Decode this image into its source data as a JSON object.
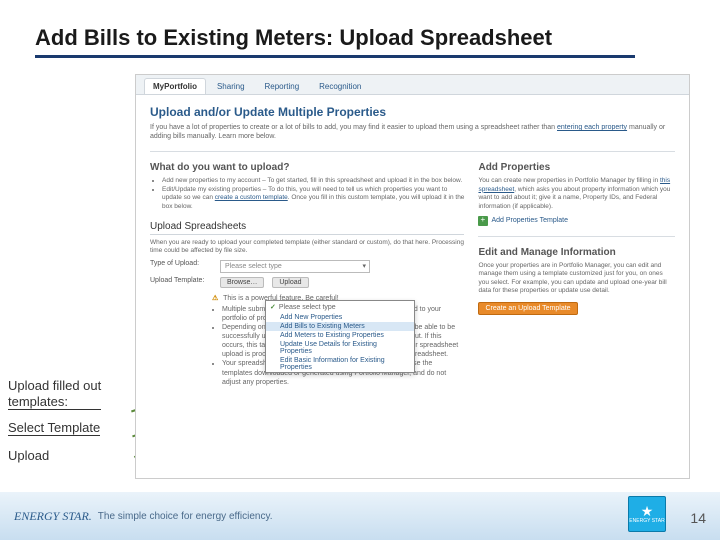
{
  "slide": {
    "title": "Add Bills to Existing Meters: Upload Spreadsheet",
    "annotations": {
      "a1_line1": "Upload filled out",
      "a1_line2": "templates:",
      "a2": "Select Template",
      "a3": "Upload"
    },
    "page_number": "14"
  },
  "colors": {
    "title_underline": "#1a3a6e",
    "arrow": "#5b8a3a",
    "link": "#2a5a8a",
    "orange_btn_bg": "#e88a2a",
    "footer_grad_top": "#eaf3fa",
    "footer_grad_bottom": "#c8def0",
    "logo_bg": "#1faee6"
  },
  "app": {
    "tabs": [
      "MyPortfolio",
      "Sharing",
      "Reporting",
      "Recognition"
    ],
    "active_tab_index": 0,
    "page_title": "Upload and/or Update Multiple Properties",
    "intro": "If you have a lot of properties to create or a lot of bills to add, you may find it easier to upload them using a spreadsheet rather than ",
    "intro_link": "entering each property",
    "intro_tail": " manually or adding bills manually. Learn more below.",
    "upload_q": {
      "heading": "What do you want to upload?",
      "bullet1": "Add new properties to my account – To get started, fill in this spreadsheet and upload it in the box below.",
      "bullet2_a": "Edit/Update my existing properties – To do this, you will need to tell us which properties you want to update so we can ",
      "bullet2_link": "create a custom template",
      "bullet2_b": ". Once you fill in this custom template, you will upload it in the box below."
    },
    "upload_sheets": {
      "heading": "Upload Spreadsheets",
      "desc": "When you are ready to upload your completed template (either standard or custom), do that here. Processing time could be affected by file size.",
      "row1_label": "Type of Upload:",
      "row2_label": "Upload Template:",
      "browse_btn": "Browse…",
      "upload_btn": "Upload",
      "dropdown_placeholder": "Please select type",
      "dropdown_options": [
        "Add New Properties",
        "Add Bills to Existing Meters",
        "Add Meters to Existing Properties",
        "Update Use Details for Existing Properties",
        "Edit Basic Information for Existing Properties"
      ],
      "dropdown_selected_index": 1,
      "warning_title": "This is a powerful feature. Be careful!",
      "warning_bullets": [
        "Multiple submissions could result in duplicate data being added to your portfolio of properties.",
        "Depending on Internet speeds, files larger than 5 MB may not be able to be successfully uploaded to the server before the session times out. If this occurs, this task may take several hours to process. While your spreadsheet upload is processing, you will not be able to upload another spreadsheet.",
        "Your spreadsheet must be in Microsoft Excel format. Please use the templates downloaded or generated using Portfolio Manager, and do not adjust any properties."
      ]
    },
    "side": {
      "add_heading": "Add Properties",
      "add_text_a": "You can create new properties in Portfolio Manager by filling in ",
      "add_link": "this spreadsheet",
      "add_text_b": ", which asks you about property information which you want to add about it; give it a name, Property IDs, and Federal information (if applicable).",
      "add_tmpl_link": "Add Properties Template",
      "edit_heading": "Edit and Manage Information",
      "edit_text": "Once your properties are in Portfolio Manager, you can edit and manage them using a template customized just for you, on ones you select. For example, you can update and upload one-year bill data for these properties or update use detail.",
      "orange_btn": "Create an Upload Template"
    }
  },
  "footer": {
    "brand": "ENERGY STAR.",
    "tagline": "The simple choice for energy efficiency.",
    "logo_top": "★",
    "logo_label": "ENERGY STAR"
  }
}
